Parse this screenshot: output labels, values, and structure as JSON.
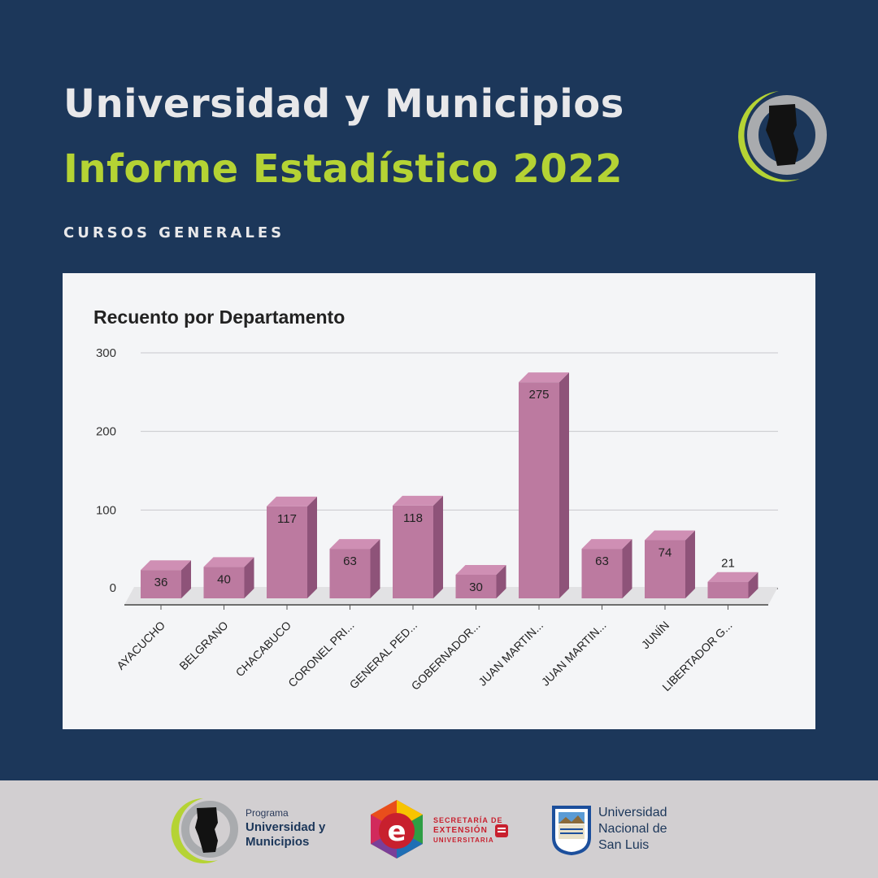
{
  "header": {
    "title_line1": "Universidad y Municipios",
    "title_line2": "Informe Estadístico 2022",
    "subtitle": "CURSOS GENERALES"
  },
  "colors": {
    "background": "#1c375a",
    "accent_green": "#b5d334",
    "bar_front": "#bc7aa0",
    "bar_top": "#cf8fb4",
    "bar_side": "#8e5379",
    "footer_bg": "#d2cfd1"
  },
  "chart_data": {
    "type": "bar",
    "title": "Recuento por Departamento",
    "xlabel": "",
    "ylabel": "",
    "ylim": [
      0,
      300
    ],
    "yticks": [
      0,
      100,
      200,
      300
    ],
    "grid": true,
    "style": "3d",
    "categories": [
      "AYACUCHO",
      "BELGRANO",
      "CHACABUCO",
      "CORONEL PRI...",
      "GENERAL PED...",
      "GOBERNADOR...",
      "JUAN MARTIN...",
      "JUAN MARTIN...",
      "JUNÍN",
      "LIBERTADOR G..."
    ],
    "values": [
      36,
      40,
      117,
      63,
      118,
      30,
      275,
      63,
      74,
      21
    ]
  },
  "footer": {
    "programa_label": "Programa",
    "programa_name_line1": "Universidad y",
    "programa_name_line2": "Municipios",
    "secretaria_line1": "SECRETARÍA DE",
    "secretaria_line2": "EXTENSIÓN",
    "secretaria_line3": "UNIVERSITARIA",
    "unsl_line1": "Universidad",
    "unsl_line2": "Nacional de",
    "unsl_line3": "San Luis"
  }
}
